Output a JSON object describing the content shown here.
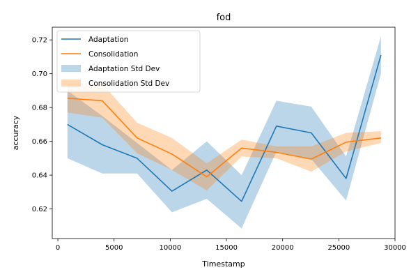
{
  "chart_data": {
    "type": "line",
    "title": "fod",
    "xlabel": "Timestamp",
    "ylabel": "accuracy",
    "xlim": [
      -500,
      30000
    ],
    "ylim": [
      0.6025,
      0.7275
    ],
    "xticks": [
      0,
      5000,
      10000,
      15000,
      20000,
      25000,
      30000
    ],
    "yticks": [
      0.62,
      0.64,
      0.66,
      0.68,
      0.7,
      0.72
    ],
    "xtick_labels": [
      "0",
      "5000",
      "10000",
      "15000",
      "20000",
      "25000",
      "30000"
    ],
    "ytick_labels": [
      "0.62",
      "0.64",
      "0.66",
      "0.68",
      "0.70",
      "0.72"
    ],
    "x": [
      850,
      3950,
      7050,
      10150,
      13250,
      16350,
      19450,
      22550,
      25650,
      28750
    ],
    "series": [
      {
        "name": "Adaptation",
        "color": "#1f77b4",
        "values": [
          0.67,
          0.658,
          0.65,
          0.6305,
          0.643,
          0.6245,
          0.669,
          0.665,
          0.638,
          0.711
        ],
        "lower": [
          0.65,
          0.641,
          0.641,
          0.618,
          0.626,
          0.6085,
          0.654,
          0.6495,
          0.625,
          0.7
        ],
        "upper": [
          0.69,
          0.675,
          0.659,
          0.643,
          0.66,
          0.64,
          0.684,
          0.6805,
          0.651,
          0.722
        ]
      },
      {
        "name": "Consolidation",
        "color": "#ff7f0e",
        "values": [
          0.6855,
          0.684,
          0.662,
          0.6525,
          0.639,
          0.656,
          0.6535,
          0.6495,
          0.6595,
          0.662
        ],
        "lower": [
          0.677,
          0.674,
          0.653,
          0.643,
          0.631,
          0.651,
          0.65,
          0.642,
          0.654,
          0.659
        ],
        "upper": [
          0.694,
          0.694,
          0.671,
          0.662,
          0.647,
          0.661,
          0.657,
          0.657,
          0.665,
          0.666
        ]
      }
    ],
    "legend": {
      "placement": "top-left",
      "entries": [
        "Adaptation",
        "Consolidation",
        "Adaptation Std Dev",
        "Consolidation Std Dev"
      ]
    },
    "grid": false
  }
}
